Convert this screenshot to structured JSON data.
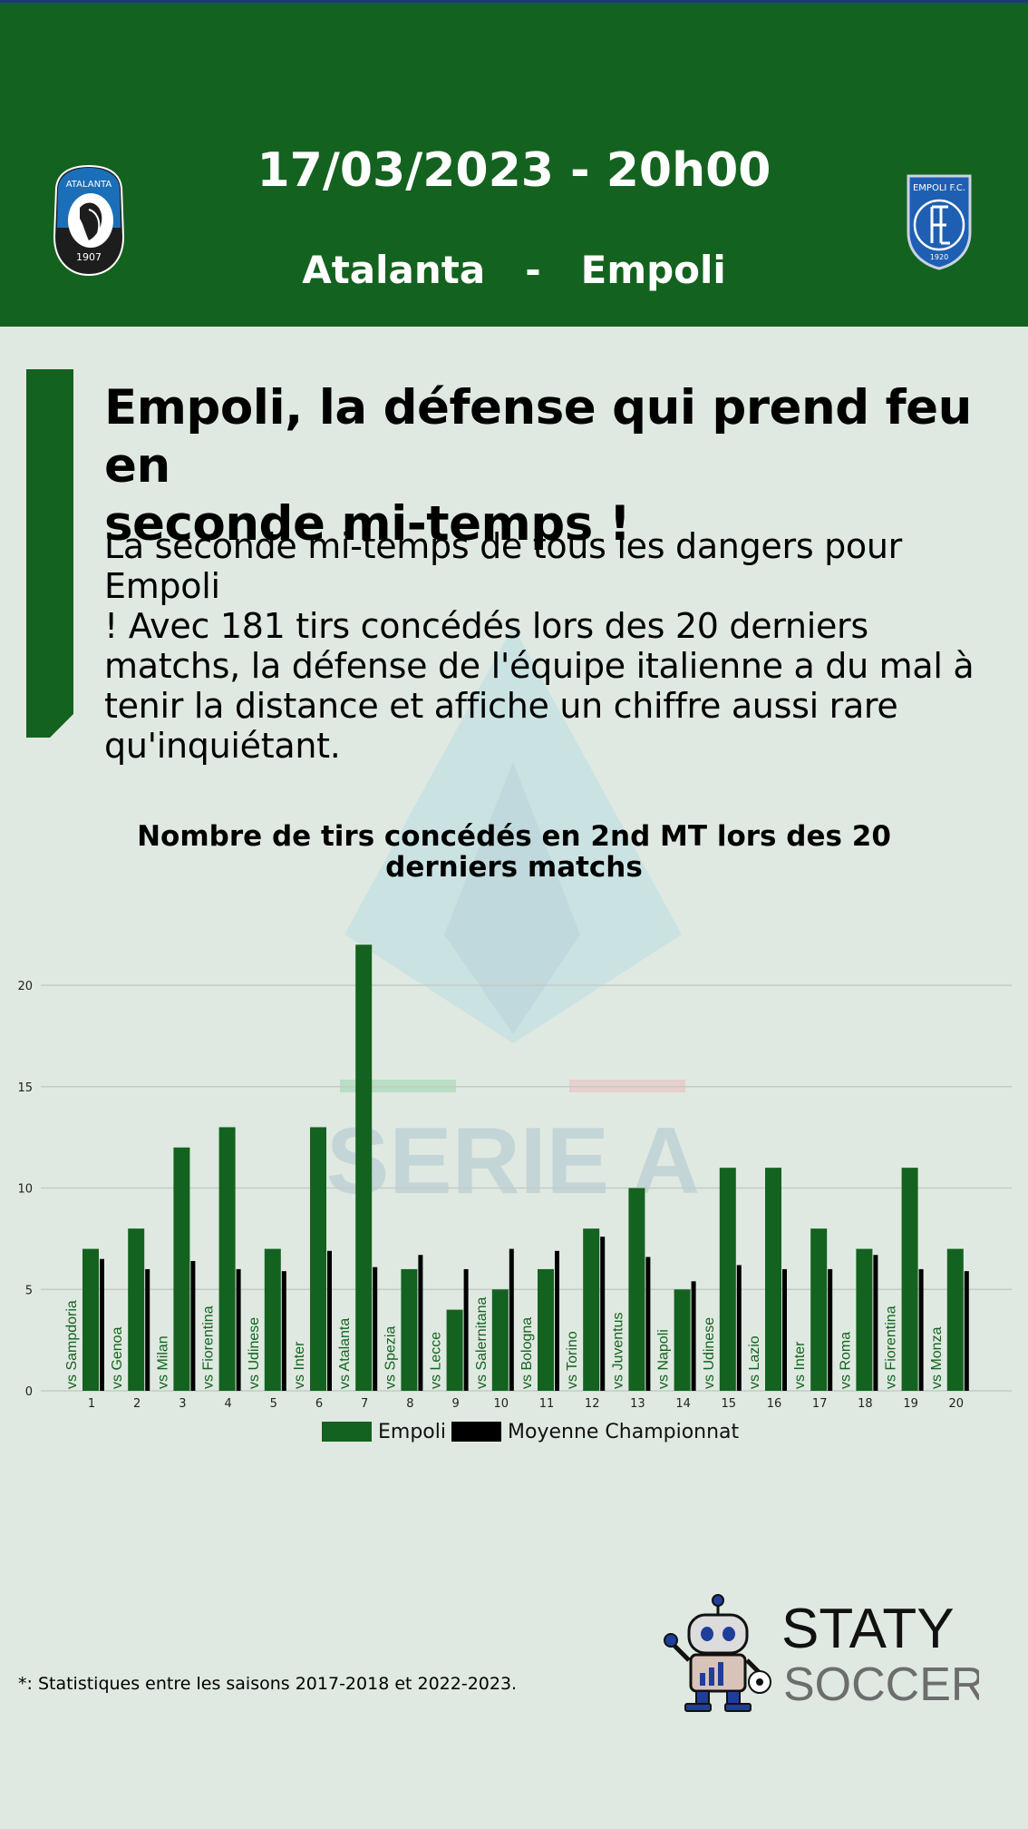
{
  "header": {
    "date": "17/03/2023 - 20h00",
    "home_team": "Atalanta",
    "separator": "-",
    "away_team": "Empoli",
    "home_badge": {
      "top": "ATALANTA",
      "year": "1907"
    },
    "away_badge": {
      "top": "EMPOLI F.C.",
      "year": "1920"
    },
    "bg_color": "#14621f"
  },
  "watermark": {
    "text": "SERIE A"
  },
  "article": {
    "headline_lines": [
      "Empoli, la défense qui prend feu en",
      "seconde mi-temps !"
    ],
    "lead_lines": [
      "La seconde mi-temps de tous les dangers pour Empoli",
      "! Avec 181 tirs concédés lors des 20 derniers",
      "matchs, la défense de l'équipe italienne a du mal à",
      "tenir la distance et affiche un chiffre aussi rare",
      "qu'inquiétant."
    ]
  },
  "chart_data": {
    "type": "bar",
    "title_lines": [
      "Nombre de tirs concédés en 2nd MT lors des 20",
      "derniers matchs"
    ],
    "categories": [
      "1",
      "2",
      "3",
      "4",
      "5",
      "6",
      "7",
      "8",
      "9",
      "10",
      "11",
      "12",
      "13",
      "14",
      "15",
      "16",
      "17",
      "18",
      "19",
      "20"
    ],
    "opponents": [
      "vs Sampdoria",
      "vs Genoa",
      "vs Milan",
      "vs Fiorentina",
      "vs Udinese",
      "vs Inter",
      "vs Atalanta",
      "vs Spezia",
      "vs Lecce",
      "vs Salernitana",
      "vs Bologna",
      "vs Torino",
      "vs Juventus",
      "vs Napoli",
      "vs Udinese",
      "vs Lazio",
      "vs Inter",
      "vs Roma",
      "vs Fiorentina",
      "vs Monza"
    ],
    "series": [
      {
        "name": "Empoli",
        "color": "#14621f",
        "values": [
          7,
          8,
          12,
          13,
          7,
          13,
          22,
          6,
          4,
          5,
          6,
          8,
          10,
          5,
          11,
          11,
          8,
          7,
          11,
          7
        ]
      },
      {
        "name": "Moyenne Championnat",
        "color": "#000000",
        "values": [
          6.5,
          6.0,
          6.4,
          6.0,
          5.9,
          6.9,
          6.1,
          6.7,
          6.0,
          7.0,
          6.9,
          7.6,
          6.6,
          5.4,
          6.2,
          6.0,
          6.0,
          6.7,
          6.0,
          5.9
        ]
      }
    ],
    "yticks": [
      0,
      5,
      10,
      15,
      20
    ],
    "ylim": [
      0,
      22
    ],
    "grid": true,
    "legend": "bottom-center"
  },
  "footnote": "*: Statistiques entre les saisons 2017-2018 et 2022-2023.",
  "brand": {
    "line1": "STATY",
    "line2": "SOCCER"
  }
}
